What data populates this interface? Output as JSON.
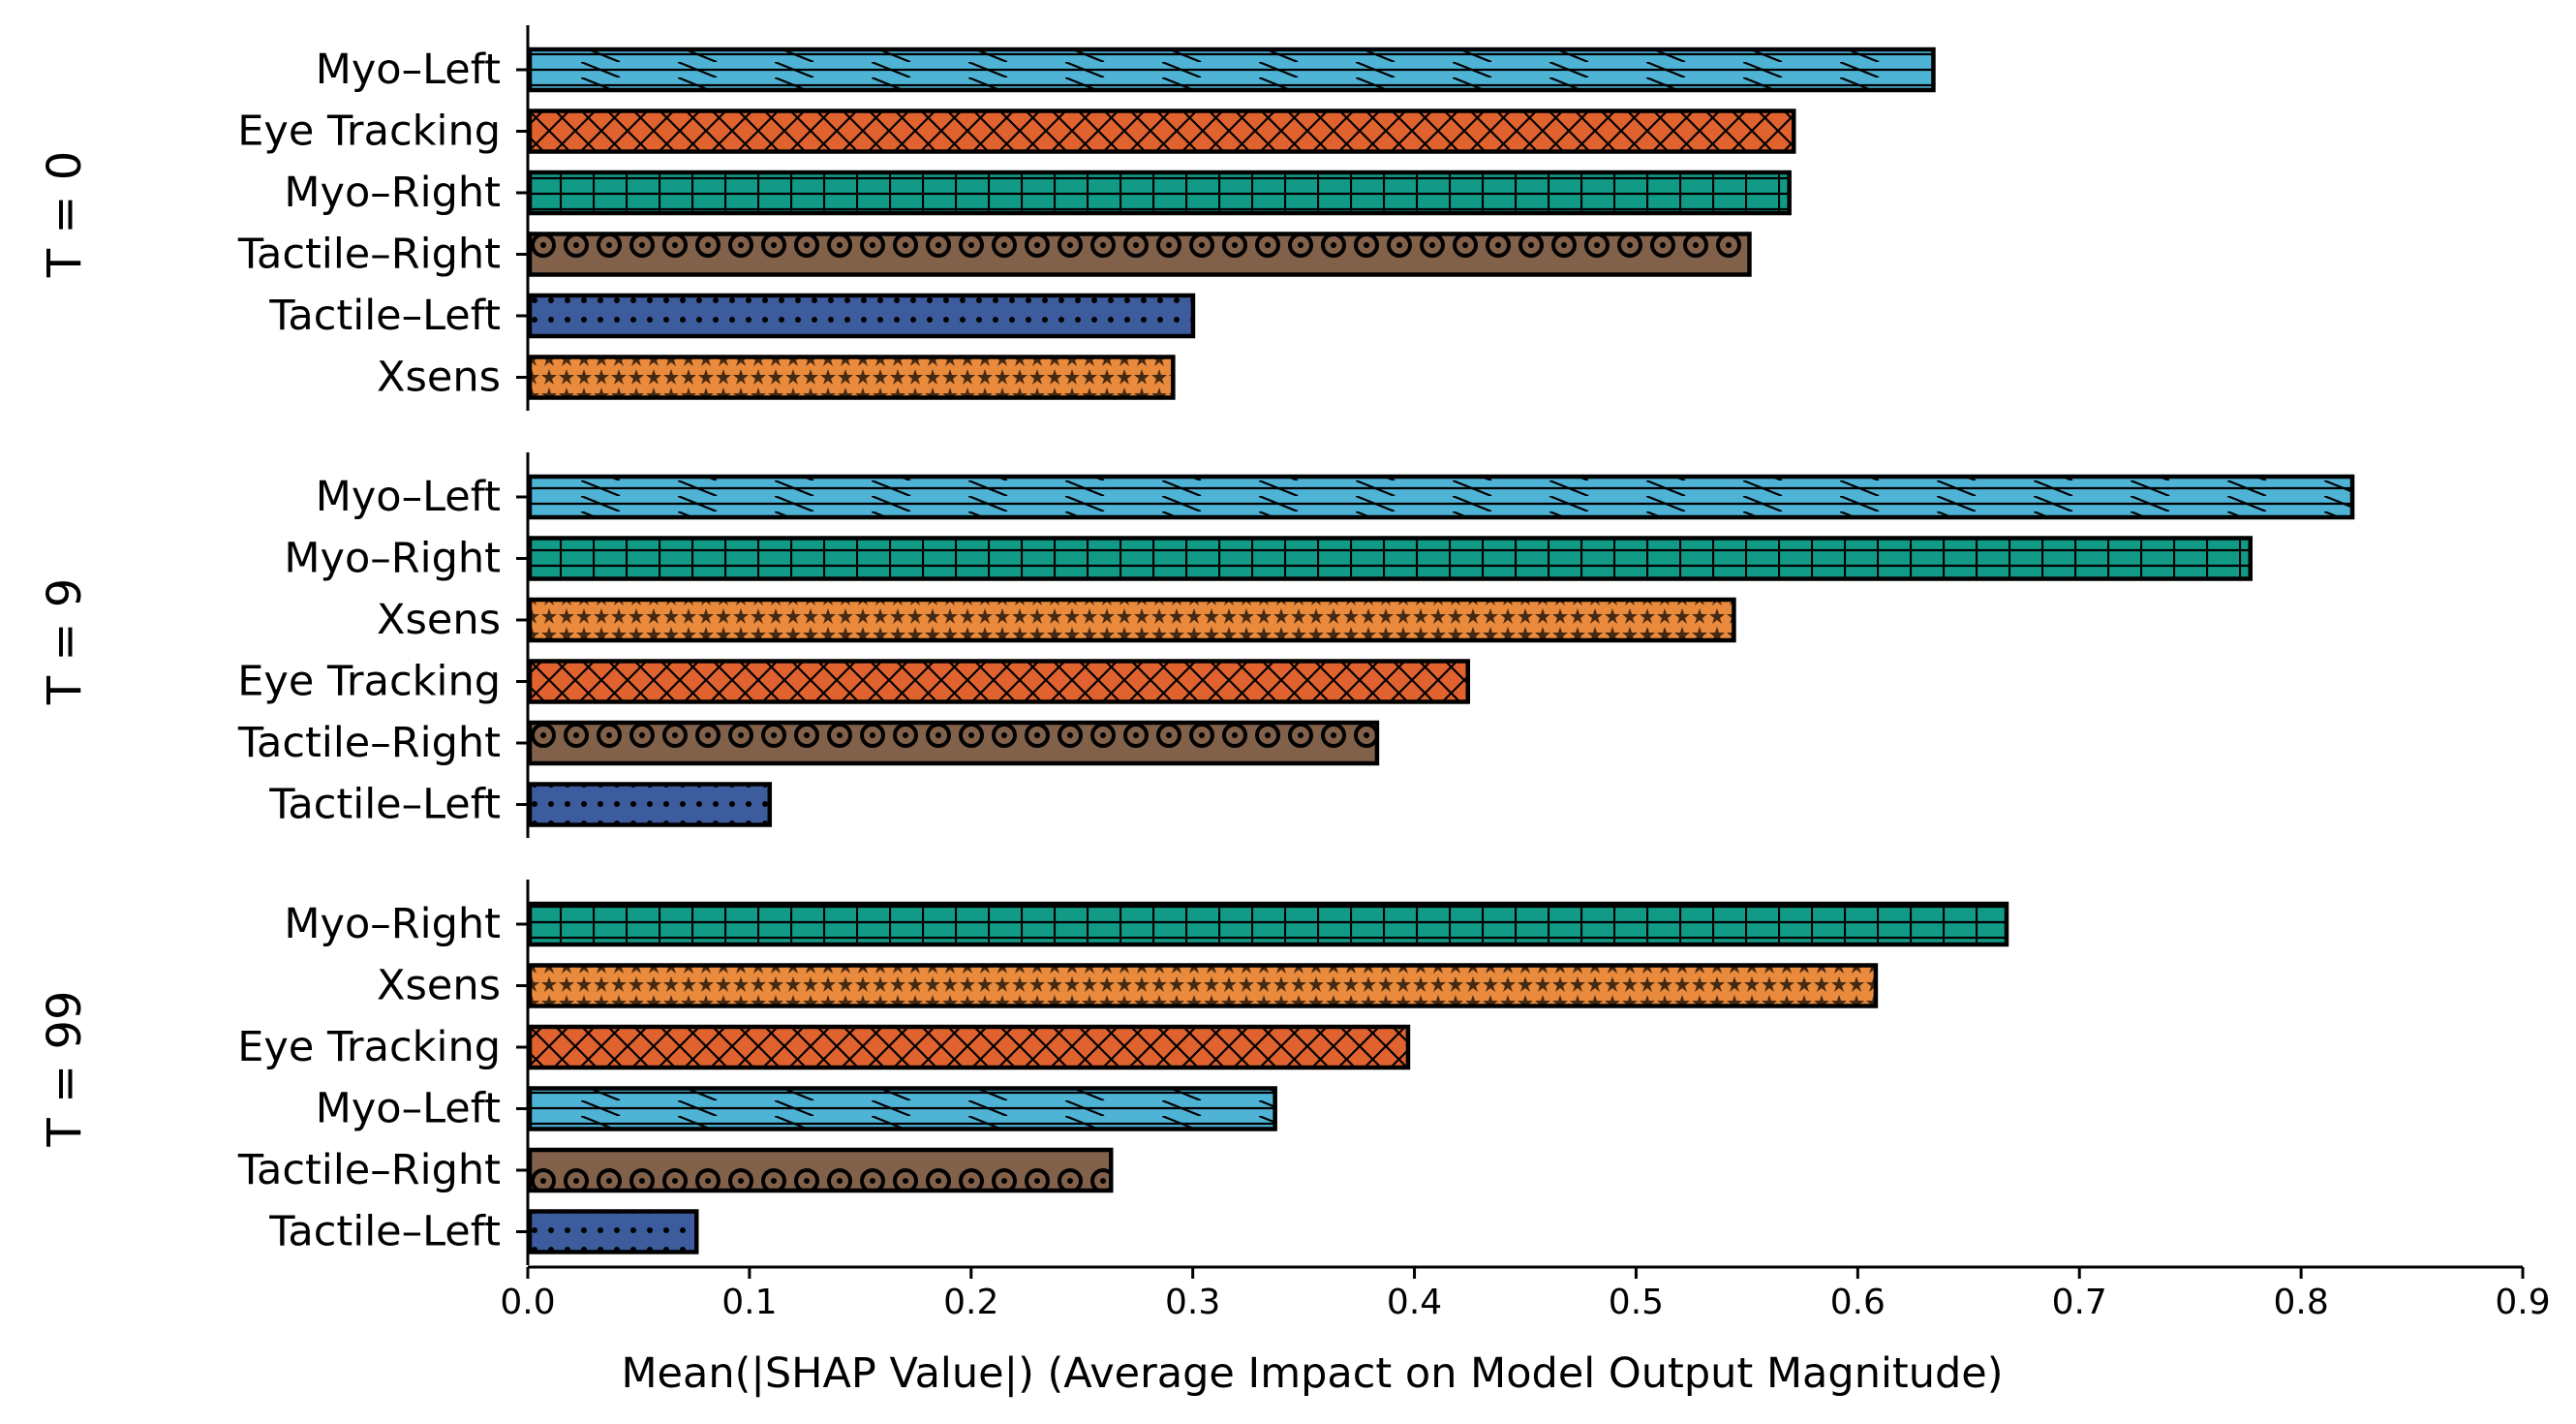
{
  "chart_data": {
    "type": "bar",
    "orientation": "horizontal",
    "xlabel": "Mean(|SHAP Value|) (Average Impact on Model Output Magnitude)",
    "xlim": [
      0.0,
      0.9
    ],
    "xticks": [
      "0.0",
      "0.1",
      "0.2",
      "0.3",
      "0.4",
      "0.5",
      "0.6",
      "0.7",
      "0.8",
      "0.9"
    ],
    "colors": {
      "Myo–Left": "#4fb3d6",
      "Eye Tracking": "#e0622f",
      "Myo–Right": "#119a86",
      "Tactile–Right": "#82614a",
      "Tactile–Left": "#3d5c9d",
      "Xsens": "#e98a3c"
    },
    "patterns": {
      "Myo–Left": "hline-diagonal",
      "Eye Tracking": "crosshatch",
      "Myo–Right": "grid",
      "Tactile–Right": "ring-dots",
      "Tactile–Left": "small-dots",
      "Xsens": "stars"
    },
    "panels": [
      {
        "label": "T = 0",
        "categories": [
          "Myo–Left",
          "Eye Tracking",
          "Myo–Right",
          "Tactile–Right",
          "Tactile–Left",
          "Xsens"
        ],
        "values": [
          0.635,
          0.572,
          0.57,
          0.552,
          0.301,
          0.292
        ]
      },
      {
        "label": "T = 9",
        "categories": [
          "Myo–Left",
          "Myo–Right",
          "Xsens",
          "Eye Tracking",
          "Tactile–Right",
          "Tactile–Left"
        ],
        "values": [
          0.824,
          0.778,
          0.545,
          0.425,
          0.384,
          0.11
        ]
      },
      {
        "label": "T = 99",
        "categories": [
          "Myo–Right",
          "Xsens",
          "Eye Tracking",
          "Myo–Left",
          "Tactile–Right",
          "Tactile–Left"
        ],
        "values": [
          0.668,
          0.609,
          0.398,
          0.338,
          0.264,
          0.077
        ]
      }
    ]
  }
}
